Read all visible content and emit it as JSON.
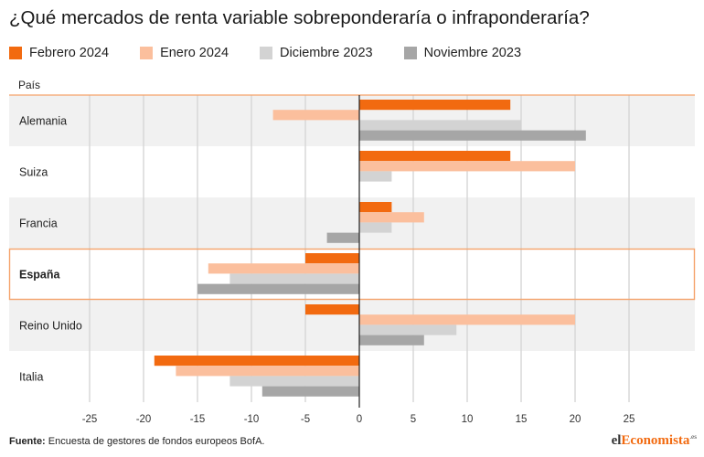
{
  "title": "¿Qué mercados de renta variable sobreponderaría o infraponderaría?",
  "footer": {
    "source_label": "Fuente:",
    "source_text": "Encuesta de gestores de fondos europeos BofA."
  },
  "brand": {
    "part1": "el",
    "part2": "Economista",
    "suffix": ".es"
  },
  "colors": {
    "accent": "#f26a10",
    "highlight_border": "#f5a36b",
    "band": "#f1f1f1"
  },
  "chart_data": {
    "type": "bar",
    "orientation": "horizontal",
    "category_header": "País",
    "categories": [
      "Alemania",
      "Suiza",
      "Francia",
      "España",
      "Reino Unido",
      "Italia"
    ],
    "highlighted_category": "España",
    "series": [
      {
        "name": "Febrero 2024",
        "color": "#f26a10",
        "values": [
          14,
          14,
          3,
          -5,
          -5,
          -19
        ]
      },
      {
        "name": "Enero 2024",
        "color": "#fbbf9d",
        "values": [
          -8,
          20,
          6,
          -14,
          20,
          -17
        ]
      },
      {
        "name": "Diciembre 2023",
        "color": "#d3d3d3",
        "values": [
          15,
          3,
          3,
          -12,
          9,
          -12
        ]
      },
      {
        "name": "Noviembre 2023",
        "color": "#a6a6a6",
        "values": [
          21,
          0,
          -3,
          -15,
          6,
          -9
        ]
      }
    ],
    "xlim": [
      -28,
      31
    ],
    "xticks": [
      -25,
      -20,
      -15,
      -10,
      -5,
      0,
      5,
      10,
      15,
      20,
      25
    ],
    "grid": true,
    "legend_position": "top-left"
  }
}
